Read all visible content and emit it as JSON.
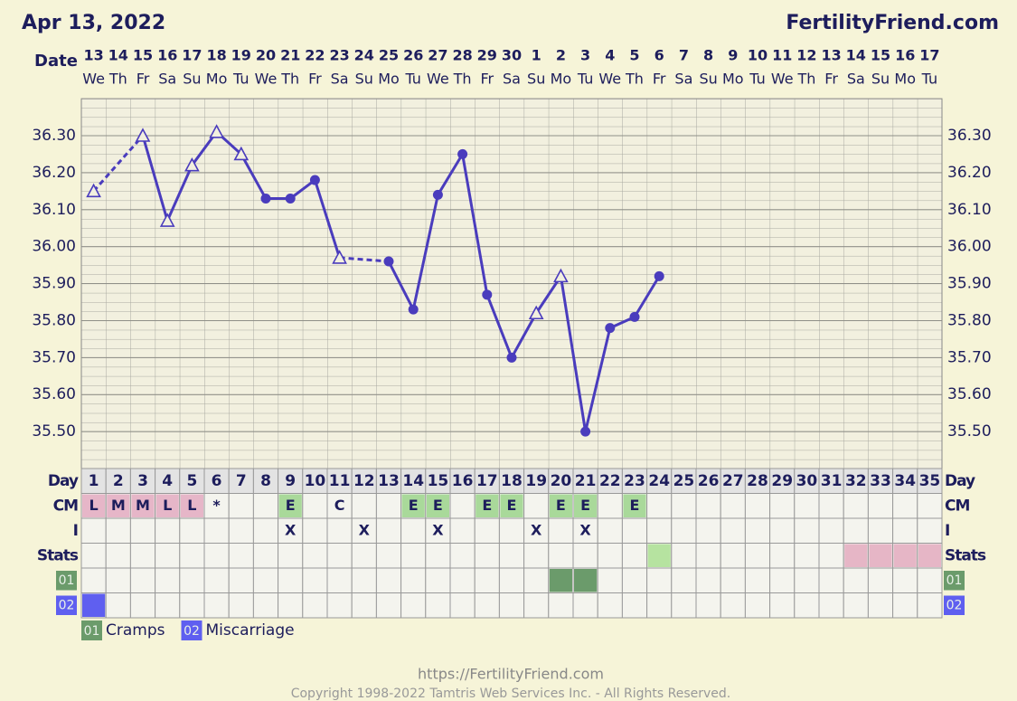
{
  "chart_data": {
    "type": "line",
    "title": "Apr 13, 2022",
    "brand": "FertilityFriend.com",
    "date_label": "Date",
    "dates": [
      "13",
      "14",
      "15",
      "16",
      "17",
      "18",
      "19",
      "20",
      "21",
      "22",
      "23",
      "24",
      "25",
      "26",
      "27",
      "28",
      "29",
      "30",
      "1",
      "2",
      "3",
      "4",
      "5",
      "6",
      "7",
      "8",
      "9",
      "10",
      "11",
      "12",
      "13",
      "14",
      "15",
      "16",
      "17"
    ],
    "weekdays": [
      "We",
      "Th",
      "Fr",
      "Sa",
      "Su",
      "Mo",
      "Tu",
      "We",
      "Th",
      "Fr",
      "Sa",
      "Su",
      "Mo",
      "Tu",
      "We",
      "Th",
      "Fr",
      "Sa",
      "Su",
      "Mo",
      "Tu",
      "We",
      "Th",
      "Fr",
      "Sa",
      "Su",
      "Mo",
      "Tu",
      "We",
      "Th",
      "Fr",
      "Sa",
      "Su",
      "Mo",
      "Tu"
    ],
    "day_label": "Day",
    "days": [
      "1",
      "2",
      "3",
      "4",
      "5",
      "6",
      "7",
      "8",
      "9",
      "10",
      "11",
      "12",
      "13",
      "14",
      "15",
      "16",
      "17",
      "18",
      "19",
      "20",
      "21",
      "22",
      "23",
      "24",
      "25",
      "26",
      "27",
      "28",
      "29",
      "30",
      "31",
      "32",
      "33",
      "34",
      "35"
    ],
    "cm_label": "CM",
    "cm": [
      "L",
      "M",
      "M",
      "L",
      "L",
      "*",
      null,
      null,
      "E",
      null,
      "C",
      null,
      null,
      "E",
      "E",
      null,
      "E",
      "E",
      null,
      "E",
      "E",
      null,
      "E",
      null,
      null,
      null,
      null,
      null,
      null,
      null,
      null,
      null,
      null,
      null,
      null
    ],
    "cm_colors": {
      "L": "#e6b6c8",
      "M": "#e6b6c8",
      "E": "#a9d99a"
    },
    "i_label": "I",
    "intercourse": [
      null,
      null,
      null,
      null,
      null,
      null,
      null,
      null,
      "X",
      null,
      null,
      "X",
      null,
      null,
      "X",
      null,
      null,
      null,
      "X",
      null,
      "X",
      null,
      null,
      null,
      null,
      null,
      null,
      null,
      null,
      null,
      null,
      null,
      null,
      null,
      null
    ],
    "stats_label": "Stats",
    "stats": [
      {
        "days": [
          24
        ],
        "color": "#b6e3a0"
      },
      {
        "days": [
          32,
          33,
          34,
          35
        ],
        "color": "#e6b6c6"
      }
    ],
    "custom_rows": [
      {
        "code": "01",
        "name": "Cramps",
        "color": "#6b9b6b",
        "days": [
          20,
          21
        ]
      },
      {
        "code": "02",
        "name": "Miscarriage",
        "color": "#5f5ff0",
        "days": [
          1
        ]
      }
    ],
    "ylim": [
      35.4,
      36.4
    ],
    "yticks": [
      {
        "value": 35.5,
        "label": "35.50"
      },
      {
        "value": 35.6,
        "label": "35.60"
      },
      {
        "value": 35.7,
        "label": "35.70"
      },
      {
        "value": 35.8,
        "label": "35.80"
      },
      {
        "value": 35.9,
        "label": "35.90"
      },
      {
        "value": 36.0,
        "label": "36.00"
      },
      {
        "value": 36.1,
        "label": "36.10"
      },
      {
        "value": 36.2,
        "label": "36.20"
      },
      {
        "value": 36.3,
        "label": "36.30"
      }
    ],
    "series": [
      {
        "color": "#4a3cbd",
        "values": [
          36.15,
          null,
          36.3,
          36.07,
          36.22,
          36.31,
          36.25,
          36.13,
          36.13,
          36.18,
          35.97,
          null,
          35.96,
          35.83,
          36.14,
          36.25,
          35.87,
          35.7,
          35.82,
          35.92,
          35.5,
          35.78,
          35.81,
          35.92,
          null,
          null,
          null,
          null,
          null,
          null,
          null,
          null,
          null,
          null,
          null
        ],
        "markers": [
          "triangle",
          null,
          "triangle",
          "triangle",
          "triangle",
          "triangle",
          "triangle",
          "circle",
          "circle",
          "circle",
          "triangle",
          null,
          "circle",
          "circle",
          "circle",
          "circle",
          "circle",
          "circle",
          "triangle",
          "triangle",
          "circle",
          "circle",
          "circle",
          "circle",
          null,
          null,
          null,
          null,
          null,
          null,
          null,
          null,
          null,
          null,
          null
        ]
      }
    ],
    "footer_url": "https://FertilityFriend.com",
    "copyright": "Copyright 1998-2022 Tamtris Web Services Inc. - All Rights Reserved."
  }
}
